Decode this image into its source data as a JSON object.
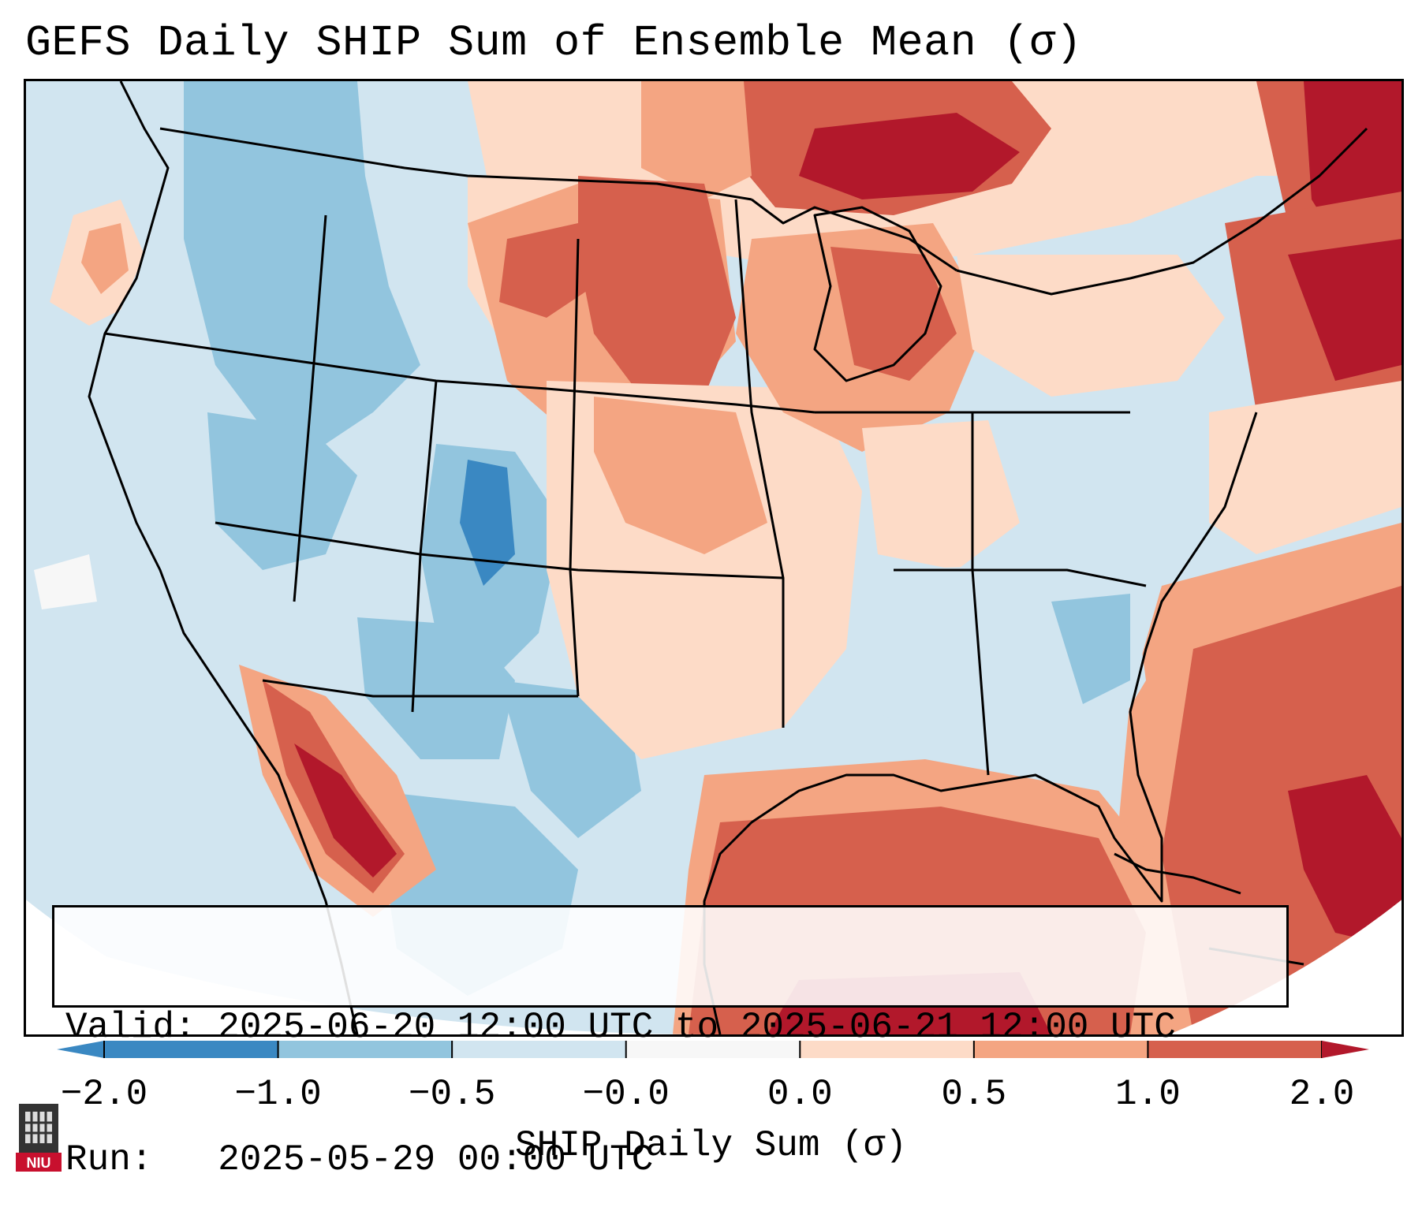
{
  "title": "GEFS Daily SHIP Sum of Ensemble Mean (σ)",
  "info": {
    "valid_line": "Valid: 2025-06-20 12:00 UTC to 2025-06-21 12:00 UTC",
    "run_line": "Run:   2025-05-29 00:00 UTC"
  },
  "colorbar": {
    "label": "SHIP Daily Sum (σ)",
    "ticks": [
      "−2.0",
      "−1.0",
      "−0.5",
      "−0.0",
      "0.0",
      "0.5",
      "1.0",
      "2.0"
    ],
    "colors": [
      "#3a88c2",
      "#92c5de",
      "#d1e5f0",
      "#f7f7f7",
      "#fddbc7",
      "#f4a582",
      "#d6604d",
      "#b2182b"
    ]
  },
  "logo": {
    "text": "NIU"
  }
}
